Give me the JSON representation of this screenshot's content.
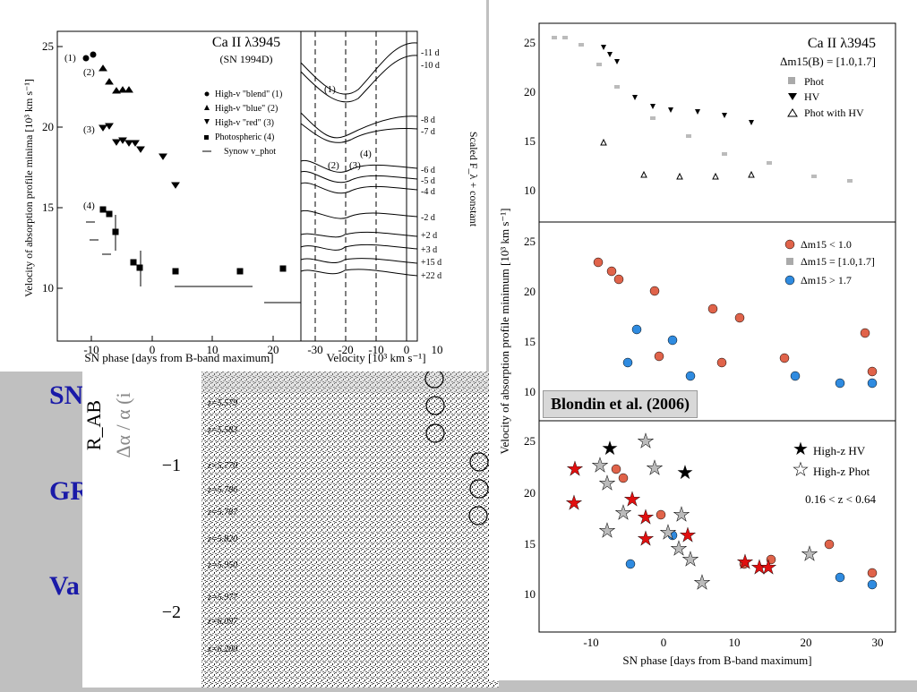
{
  "slide_text": [
    "SN",
    "GR",
    "Va"
  ],
  "left_figure": {
    "title": "Ca II λ3945",
    "subtitle": "(SN 1994D)",
    "ylabel": "Velocity of absorption profile minima  [10³ km s⁻¹]",
    "xlabel": "SN phase  [days from B-band maximum]",
    "x_ticks": [
      "-10",
      "0",
      "10",
      "20"
    ],
    "y_ticks": [
      "25",
      "20",
      "15",
      "10"
    ],
    "legend": [
      "High-v \"blend\" (1)",
      "High-v \"blue\" (2)",
      "High-v \"red\" (3)",
      "Photospheric (4)",
      "Synow v_phot"
    ],
    "group_labels": [
      "(1)",
      "(2)",
      "(3)",
      "(4)"
    ]
  },
  "spectra_panel": {
    "xlabel": "Velocity  [10³ km s⁻¹]",
    "ylabel": "Scaled F_λ + constant",
    "x_ticks": [
      "-30",
      "-20",
      "-10",
      "0",
      "10"
    ],
    "epochs": [
      "-11 d",
      "-10 d",
      "-8 d",
      "-7 d",
      "-6 d",
      "-5 d",
      "-4 d",
      "-2 d",
      "+2 d",
      "+3 d",
      "+15 d",
      "+22 d"
    ],
    "markers": [
      "(1)",
      "(2)",
      "(3)",
      "(4)"
    ]
  },
  "right_figure": {
    "ylabel": "Velocity of absorption profile minimum [10³ km s⁻¹]",
    "xlabel": "SN phase [days from B-band maximum]",
    "x_ticks": [
      "-10",
      "0",
      "10",
      "20",
      "30"
    ],
    "y_ticks": [
      "25",
      "20",
      "15",
      "10"
    ],
    "top_title": "Ca II λ3945",
    "top_subtitle": "Δm15(B) = [1.0,1.7]",
    "top_legend": [
      "Phot",
      "HV",
      "Phot with HV"
    ],
    "mid_legend": [
      "Δm15 < 1.0",
      "Δm15 = [1.0,1.7]",
      "Δm15 > 1.7"
    ],
    "bot_legend": [
      "High-z HV",
      "High-z Phot"
    ],
    "bot_range": "0.16 < z < 0.64",
    "citation": "Blondin et al. (2006)"
  },
  "spectra_image": {
    "y_ticks": [
      "−1",
      "−2"
    ],
    "ylabel_a": "R_AB",
    "ylabel_b": "Δα / α (i",
    "redshifts": [
      "z=5.579",
      "z=5.583",
      "z=5.770",
      "z=5.786",
      "z=5.787",
      "z=5.820",
      "z=5.950",
      "z=5.977",
      "z=6.097",
      "z=6.200"
    ]
  }
}
